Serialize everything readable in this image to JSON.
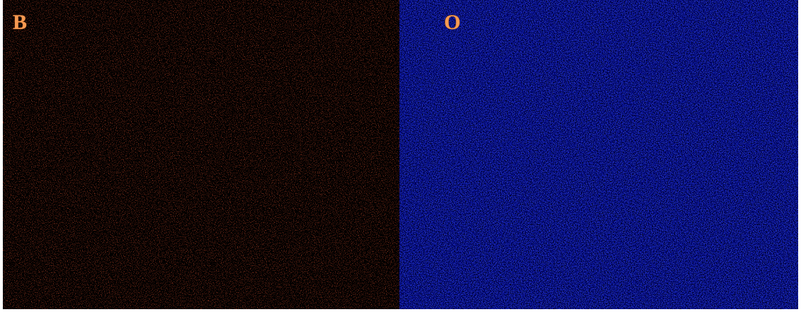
{
  "panels": [
    {
      "label": "B"
    },
    {
      "label": "O"
    }
  ]
}
